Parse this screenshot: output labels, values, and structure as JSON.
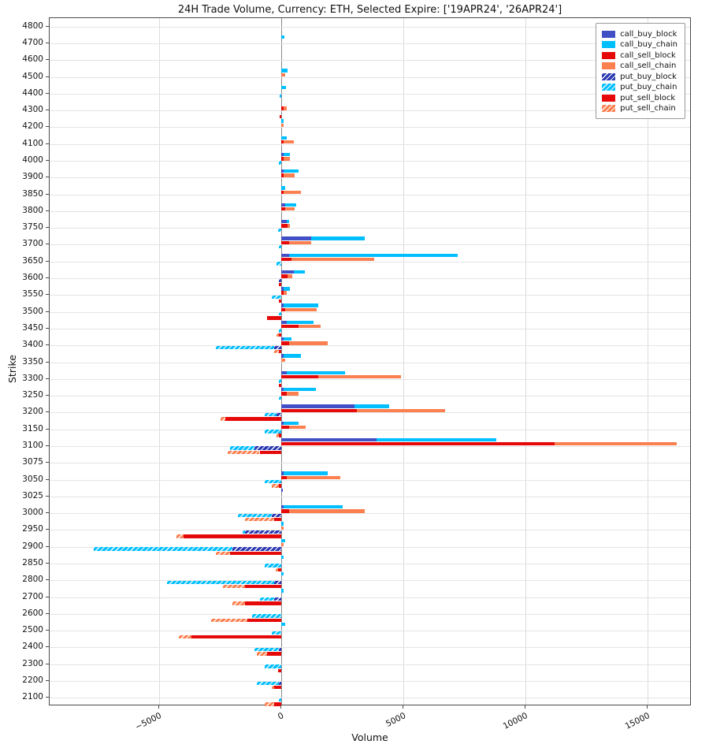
{
  "title": "24H Trade Volume, Currency: ETH, Selected Expire: ['19APR24', '26APR24']",
  "chart_data": {
    "type": "bar",
    "orientation": "horizontal",
    "title": "24H Trade Volume, Currency: ETH, Selected Expire: ['19APR24', '26APR24']",
    "xlabel": "Volume",
    "ylabel": "Strike",
    "grid": true,
    "xlim": [
      -9500,
      16800
    ],
    "x_ticks": [
      -5000,
      0,
      5000,
      10000,
      15000
    ],
    "x_tick_labels": [
      "−5000",
      "0",
      "5000",
      "10000",
      "15000"
    ],
    "legend_position": "upper right",
    "categories": [
      "4800",
      "4700",
      "4600",
      "4500",
      "4400",
      "4300",
      "4200",
      "4100",
      "4000",
      "3900",
      "3850",
      "3800",
      "3750",
      "3700",
      "3650",
      "3600",
      "3550",
      "3500",
      "3450",
      "3400",
      "3350",
      "3300",
      "3250",
      "3200",
      "3150",
      "3100",
      "3075",
      "3050",
      "3025",
      "3000",
      "2950",
      "2900",
      "2850",
      "2800",
      "2700",
      "2600",
      "2500",
      "2400",
      "2300",
      "2200",
      "2100"
    ],
    "series": [
      {
        "name": "call_buy_block",
        "color": "#4150c4",
        "hatch": false,
        "stack": "call_buy",
        "values": [
          0,
          0,
          0,
          0,
          0,
          0,
          0,
          0,
          80,
          100,
          0,
          150,
          200,
          1200,
          300,
          500,
          100,
          100,
          200,
          100,
          100,
          200,
          100,
          3000,
          100,
          3900,
          0,
          100,
          50,
          100,
          0,
          0,
          0,
          0,
          0,
          0,
          0,
          0,
          0,
          0,
          0
        ]
      },
      {
        "name": "call_buy_chain",
        "color": "#00bfff",
        "hatch": false,
        "stack": "call_buy",
        "values": [
          0,
          120,
          0,
          250,
          180,
          0,
          100,
          200,
          250,
          600,
          150,
          450,
          100,
          2200,
          6900,
          450,
          250,
          1400,
          1100,
          300,
          700,
          2400,
          1300,
          1400,
          600,
          4900,
          0,
          1800,
          0,
          2400,
          100,
          150,
          100,
          100,
          100,
          0,
          150,
          0,
          0,
          0,
          0
        ]
      },
      {
        "name": "call_sell_block",
        "color": "#e60909",
        "hatch": false,
        "stack": "call_sell",
        "values": [
          0,
          0,
          0,
          0,
          0,
          100,
          0,
          100,
          100,
          100,
          100,
          150,
          250,
          300,
          400,
          250,
          100,
          150,
          700,
          300,
          0,
          1500,
          200,
          3100,
          300,
          11200,
          0,
          200,
          0,
          300,
          0,
          0,
          0,
          0,
          0,
          0,
          0,
          0,
          0,
          0,
          0
        ]
      },
      {
        "name": "call_sell_chain",
        "color": "#fc7f50",
        "hatch": false,
        "stack": "call_sell",
        "values": [
          0,
          0,
          0,
          150,
          0,
          120,
          100,
          400,
          250,
          450,
          700,
          400,
          100,
          900,
          3400,
          200,
          100,
          1300,
          900,
          1600,
          150,
          3400,
          500,
          3600,
          700,
          5000,
          0,
          2200,
          0,
          3100,
          100,
          100,
          0,
          0,
          0,
          0,
          0,
          0,
          0,
          0,
          0
        ]
      },
      {
        "name": "put_buy_block",
        "color": "#2a38b2",
        "hatch": true,
        "stack": "put_buy",
        "values": [
          0,
          0,
          0,
          0,
          0,
          0,
          0,
          0,
          0,
          0,
          0,
          0,
          0,
          0,
          0,
          -100,
          0,
          0,
          0,
          -300,
          0,
          0,
          0,
          -200,
          0,
          -1100,
          0,
          0,
          0,
          -400,
          -1500,
          -2000,
          0,
          -300,
          -300,
          0,
          0,
          -100,
          0,
          -100,
          0
        ]
      },
      {
        "name": "put_buy_chain",
        "color": "#00bfff",
        "hatch": true,
        "stack": "put_buy",
        "values": [
          0,
          0,
          0,
          0,
          -80,
          0,
          0,
          0,
          -100,
          0,
          0,
          0,
          -150,
          -100,
          -200,
          0,
          -400,
          -100,
          -100,
          -2400,
          0,
          -100,
          -100,
          -500,
          -700,
          -1000,
          0,
          -700,
          0,
          -1400,
          -100,
          -5700,
          -700,
          -4400,
          -600,
          -1200,
          -400,
          -1000,
          -700,
          -900,
          -100
        ]
      },
      {
        "name": "put_sell_block",
        "color": "#e60909",
        "hatch": false,
        "stack": "put_sell",
        "values": [
          0,
          0,
          0,
          0,
          0,
          -80,
          0,
          0,
          0,
          0,
          0,
          0,
          0,
          0,
          0,
          -100,
          -100,
          -600,
          -100,
          -100,
          0,
          -100,
          0,
          -2300,
          -100,
          -900,
          0,
          -100,
          0,
          -300,
          -4000,
          -2100,
          -150,
          -1500,
          -1500,
          -1400,
          -3700,
          -600,
          -150,
          -300,
          -300
        ]
      },
      {
        "name": "put_sell_chain",
        "color": "#fc7f50",
        "hatch": true,
        "stack": "put_sell",
        "values": [
          0,
          0,
          0,
          0,
          0,
          0,
          0,
          0,
          0,
          0,
          0,
          0,
          0,
          0,
          0,
          0,
          0,
          0,
          -100,
          -200,
          0,
          0,
          0,
          -200,
          -100,
          -1300,
          0,
          -300,
          0,
          -1200,
          -300,
          -600,
          -100,
          -900,
          -500,
          -1500,
          -500,
          -400,
          0,
          -100,
          -400
        ]
      }
    ]
  }
}
